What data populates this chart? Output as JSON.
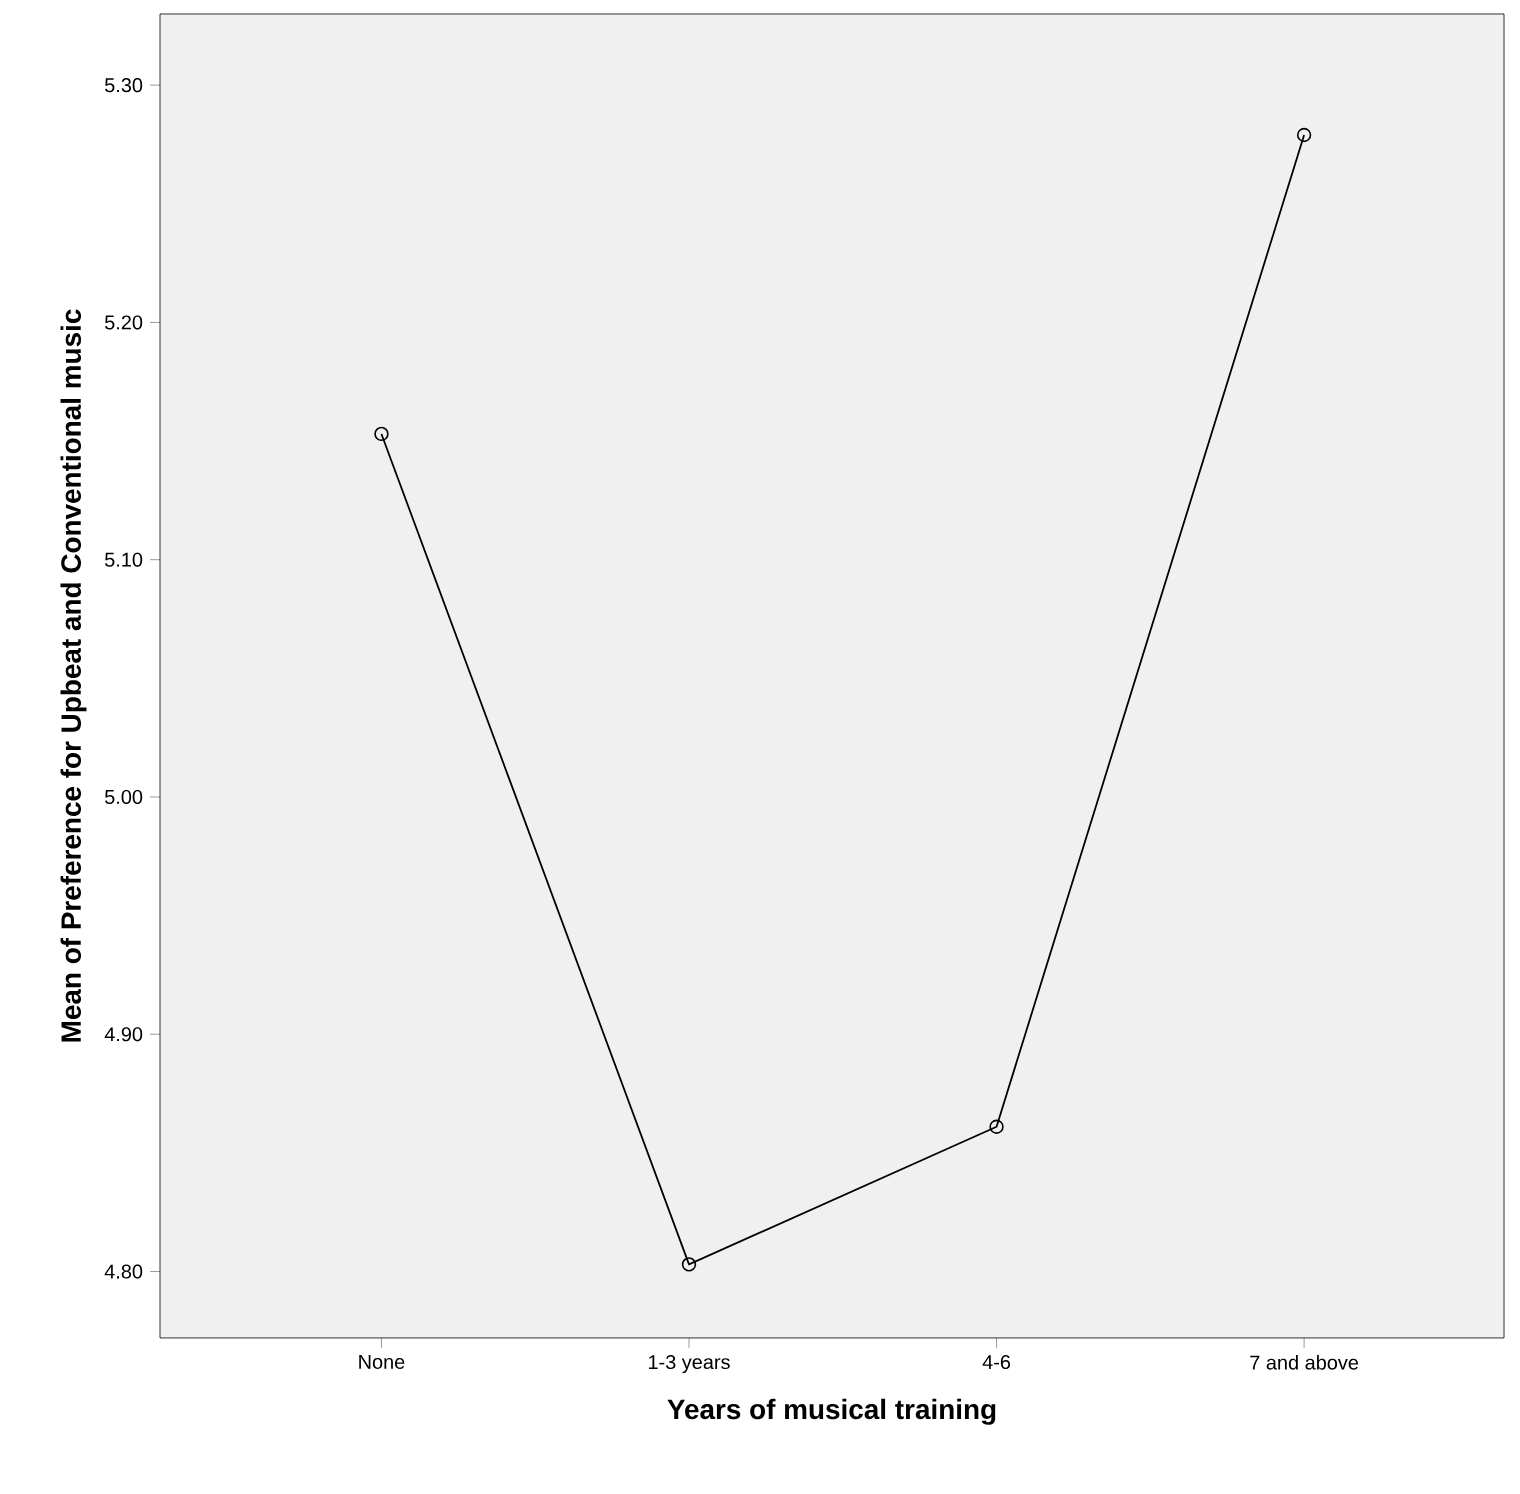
{
  "chart_data": {
    "type": "line",
    "xlabel": "Years of musical training",
    "ylabel": "Mean of Preference for Upbeat and Conventional music",
    "categories": [
      "None",
      "1-3 years",
      "4-6",
      "7 and above"
    ],
    "series": [
      {
        "color": "#000000",
        "values": [
          5.153,
          4.803,
          4.861,
          5.279
        ]
      }
    ],
    "ylim": [
      4.772,
      5.33
    ],
    "yticks": [
      {
        "value": 4.8,
        "label": "4.80"
      },
      {
        "value": 4.9,
        "label": "4.90"
      },
      {
        "value": 5.0,
        "label": "5.00"
      },
      {
        "value": 5.1,
        "label": "5.10"
      },
      {
        "value": 5.2,
        "label": "5.20"
      },
      {
        "value": 5.3,
        "label": "5.30"
      }
    ],
    "marker": "circle",
    "line_style": "solid",
    "grid": false
  }
}
